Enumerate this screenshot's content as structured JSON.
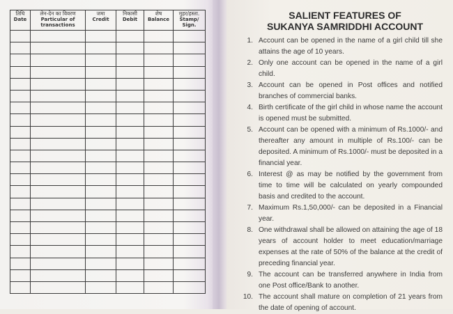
{
  "ledger": {
    "headers": [
      {
        "hindi": "तिथि",
        "english": "Date"
      },
      {
        "hindi": "लेन-देन का विवरण",
        "english": "Particular of transactions"
      },
      {
        "hindi": "जमा",
        "english": "Credit"
      },
      {
        "hindi": "निकासी",
        "english": "Debit"
      },
      {
        "hindi": "शेष",
        "english": "Balance"
      },
      {
        "hindi": "मुहर/हस्ता.",
        "english": "Stamp/ Sign."
      }
    ]
  },
  "features": {
    "title_line1": "SALIENT FEATURES OF",
    "title_line2": "SUKANYA SAMRIDDHI ACCOUNT",
    "items": [
      {
        "num": "1.",
        "text": "Account can be opened in the name of a girl child till she attains the age of 10 years."
      },
      {
        "num": "2.",
        "text": "Only one account can be opened in the name of a girl child."
      },
      {
        "num": "3.",
        "text": "Account can be opened in Post offices and notified branches of commercial banks."
      },
      {
        "num": "4.",
        "text": "Birth certificate of the girl child in whose name the account is opened must be submitted."
      },
      {
        "num": "5.",
        "text": "Account can be opened with a minimum of Rs.1000/- and thereafter any amount in multiple of Rs.100/- can be deposited. A minimum of Rs.1000/- must be deposited in a financial year."
      },
      {
        "num": "6.",
        "text": "Interest @ as may be notified by the government from time to time will be calculated on yearly compounded basis and credited to the account."
      },
      {
        "num": "7.",
        "text": "Maximum Rs.1,50,000/- can be deposited in a Financial year."
      },
      {
        "num": "8.",
        "text": "One withdrawal shall be allowed on attaining the age of 18 years of account holder to meet education/marriage expenses at the rate of 50% of the balance at the credit of preceding financial year."
      },
      {
        "num": "9.",
        "text": "The account can be transferred anywhere in India from one Post office/Bank to another."
      },
      {
        "num": "10.",
        "text": "The account shall mature on completion of 21 years from the date of opening of account."
      }
    ]
  }
}
